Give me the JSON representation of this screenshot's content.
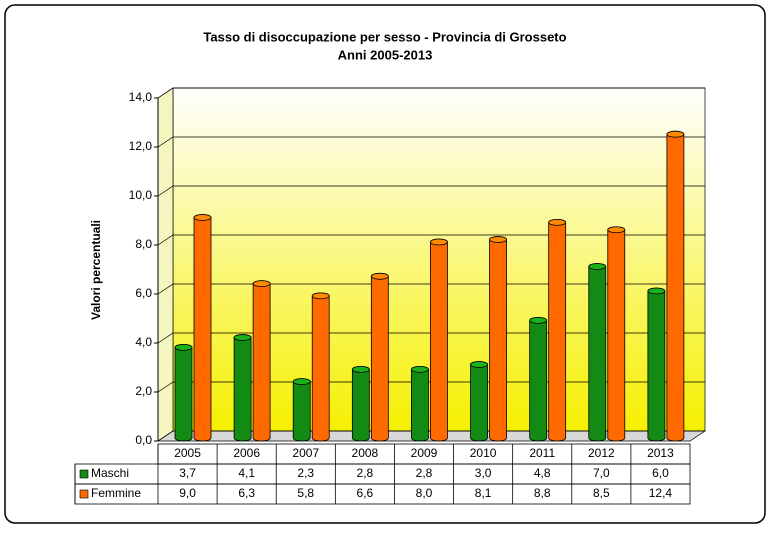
{
  "chart_data": {
    "type": "bar",
    "title": "Tasso di disoccupazione per sesso - Provincia di Grosseto",
    "subtitle": "Anni 2005-2013",
    "y_label": "Valori percentuali",
    "categories": [
      "2005",
      "2006",
      "2007",
      "2008",
      "2009",
      "2010",
      "2011",
      "2012",
      "2013"
    ],
    "series": [
      {
        "name": "Maschi",
        "color": "#138a13",
        "values": [
          3.7,
          4.1,
          2.3,
          2.8,
          2.8,
          3.0,
          4.8,
          7.0,
          6.0
        ],
        "value_labels": [
          "3,7",
          "4,1",
          "2,3",
          "2,8",
          "2,8",
          "3,0",
          "4,8",
          "7,0",
          "6,0"
        ]
      },
      {
        "name": "Femmine",
        "color": "#ff6a00",
        "values": [
          9.0,
          6.3,
          5.8,
          6.6,
          8.0,
          8.1,
          8.8,
          8.5,
          12.4
        ],
        "value_labels": [
          "9,0",
          "6,3",
          "5,8",
          "6,6",
          "8,0",
          "8,1",
          "8,8",
          "8,5",
          "12,4"
        ]
      }
    ],
    "ylim": [
      0,
      14
    ],
    "yticks": [
      {
        "value": 0,
        "label": "0,0"
      },
      {
        "value": 2,
        "label": "2,0"
      },
      {
        "value": 4,
        "label": "4,0"
      },
      {
        "value": 6,
        "label": "6,0"
      },
      {
        "value": 8,
        "label": "8,0"
      },
      {
        "value": 10,
        "label": "10,0"
      },
      {
        "value": 12,
        "label": "12,0"
      },
      {
        "value": 14,
        "label": "14,0"
      }
    ],
    "grid": true
  }
}
